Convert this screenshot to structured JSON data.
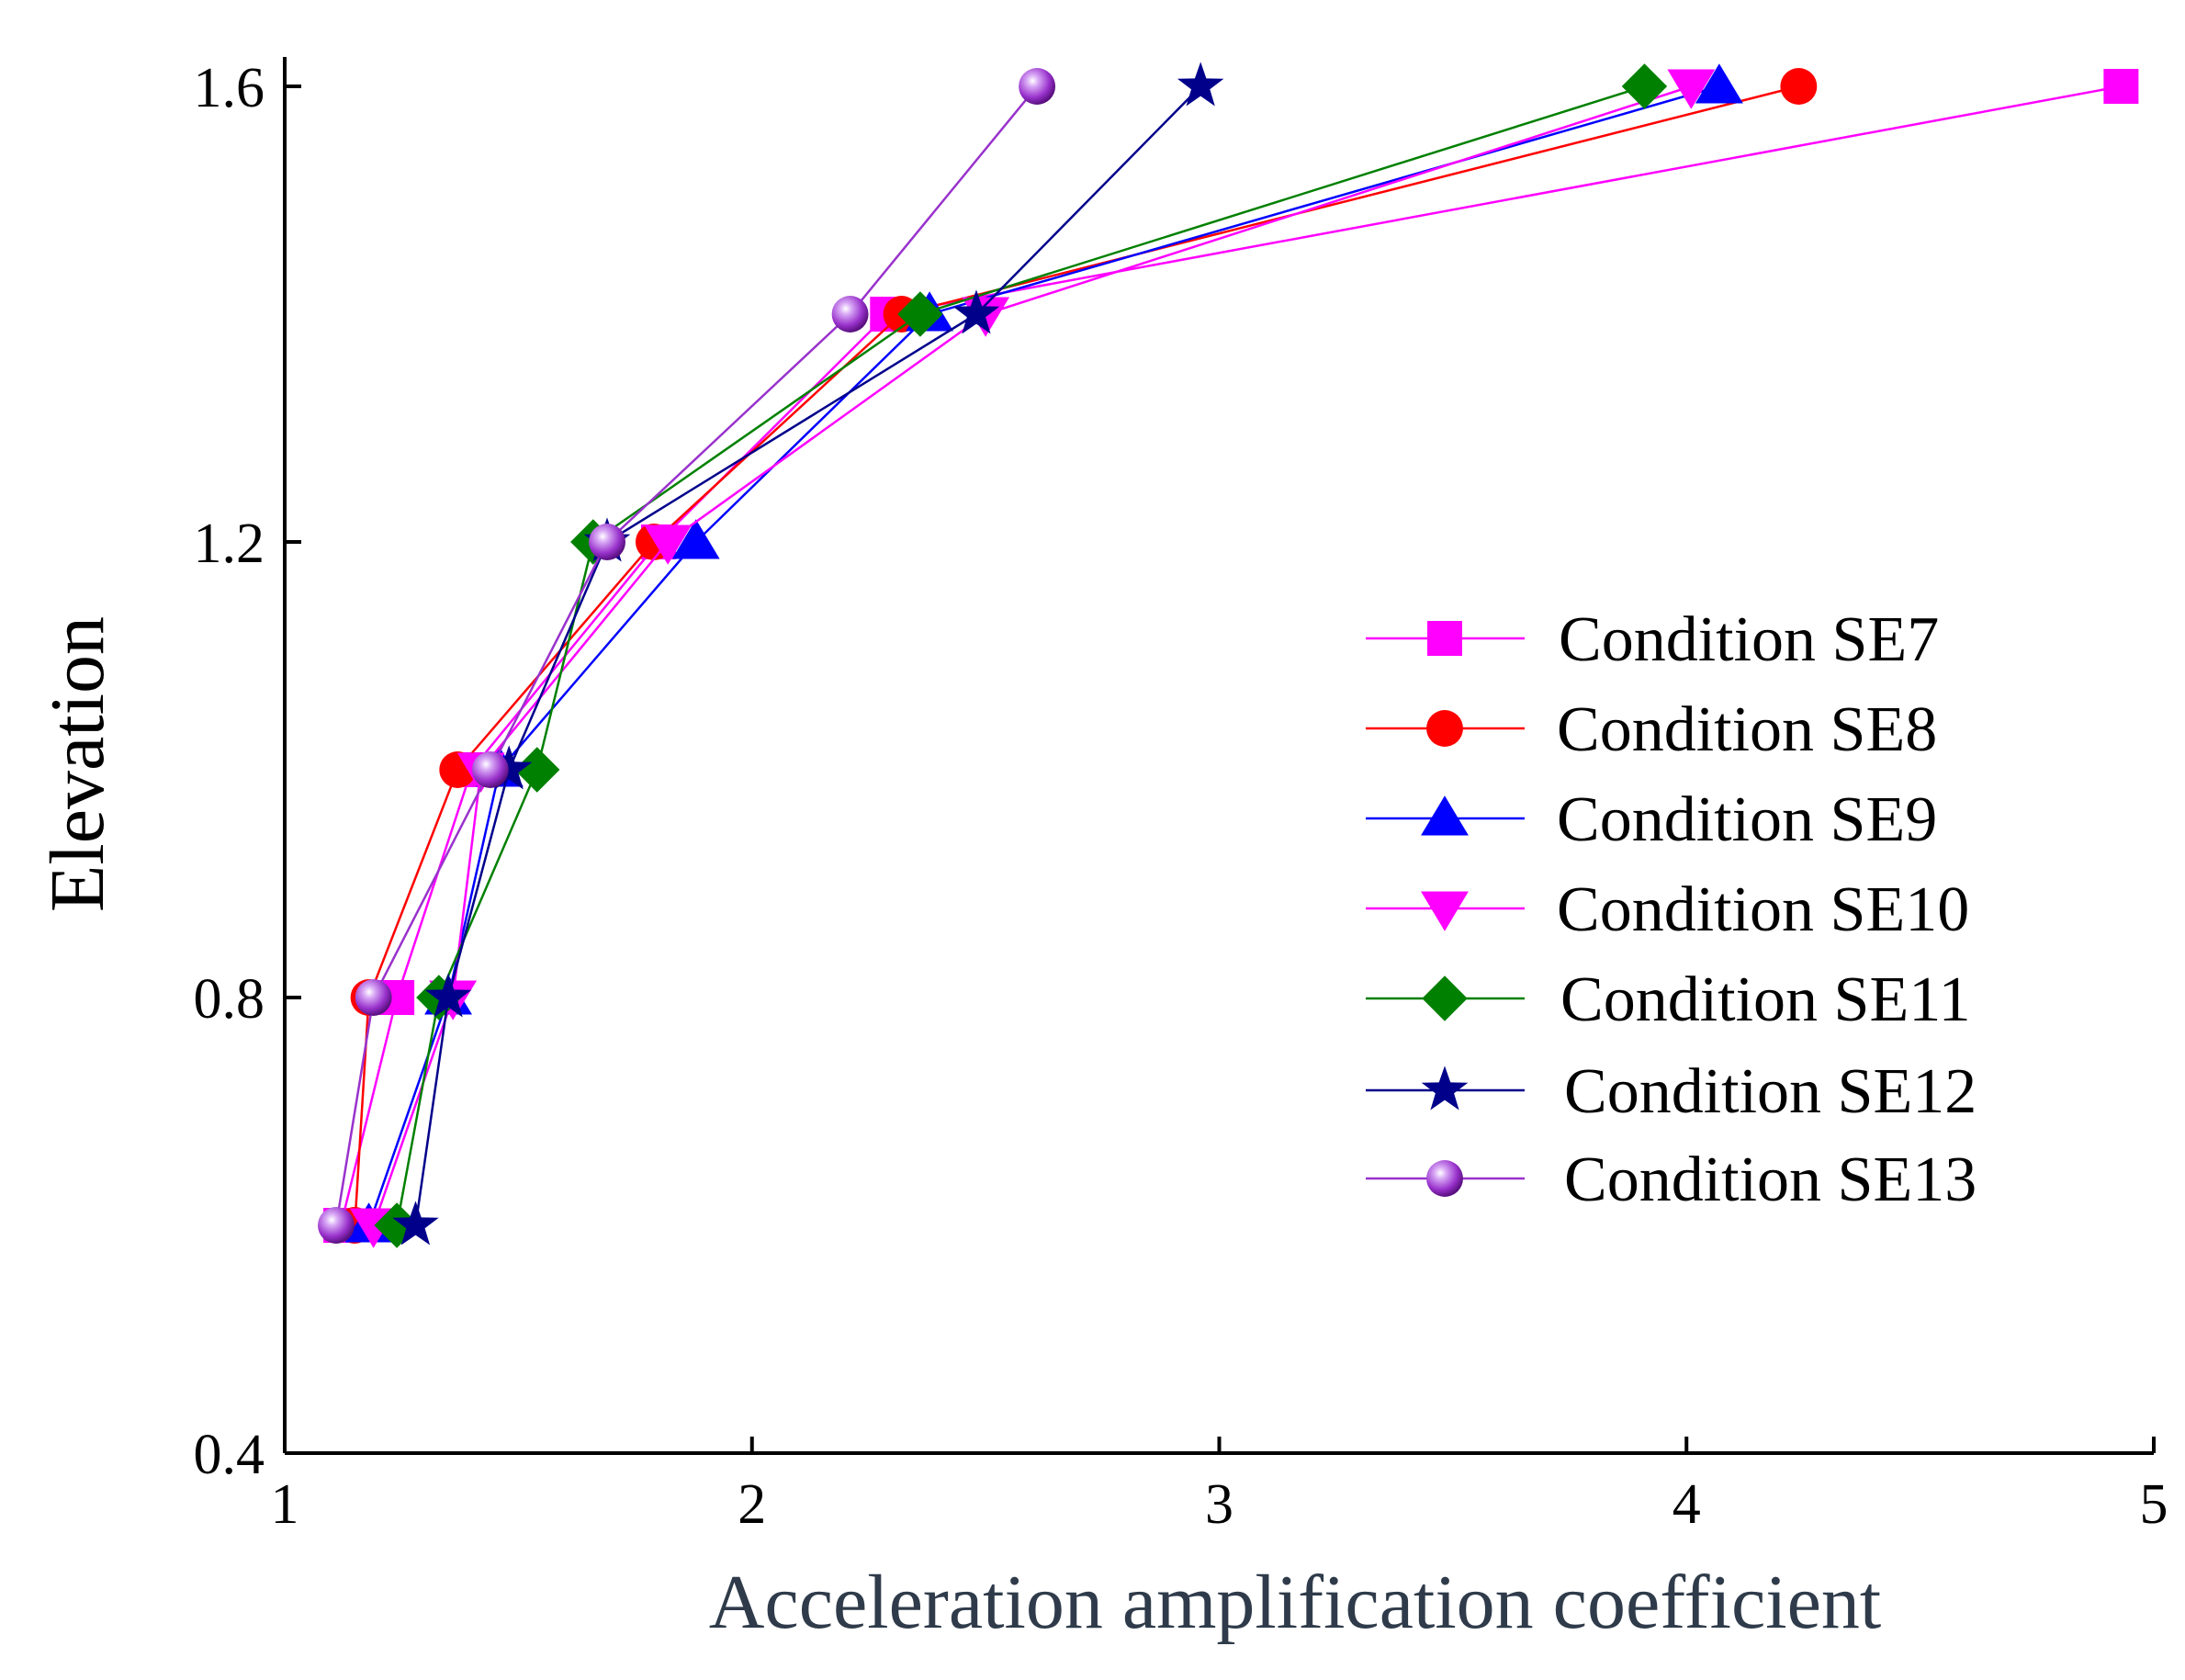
{
  "chart_data": {
    "type": "line",
    "title": "",
    "xlabel": "Acceleration amplification coefficient",
    "ylabel": "Elevation",
    "xlim": [
      1,
      5
    ],
    "ylim": [
      0.4,
      1.6
    ],
    "xticks": [
      "1",
      "2",
      "3",
      "4",
      "5"
    ],
    "yticks": [
      "0.4",
      "0.8",
      "1.2",
      "1.6"
    ],
    "grid": false,
    "legend_position": "right",
    "y": [
      0.6,
      0.8,
      1.0,
      1.2,
      1.4,
      1.6
    ],
    "series": [
      {
        "name": "Condition SE7",
        "marker": "square",
        "color": "#ff00ff",
        "x": [
          1.12,
          1.24,
          1.4,
          1.8,
          2.29,
          4.93
        ]
      },
      {
        "name": "Condition SE8",
        "marker": "circle",
        "color": "#ff0000",
        "x": [
          1.15,
          1.18,
          1.37,
          1.79,
          2.32,
          4.24
        ]
      },
      {
        "name": "Condition SE9",
        "marker": "triangle-up",
        "color": "#0000ff",
        "x": [
          1.18,
          1.35,
          1.46,
          1.88,
          2.38,
          4.07
        ]
      },
      {
        "name": "Condition SE10",
        "marker": "triangle-down",
        "color": "#ff00ff",
        "x": [
          1.19,
          1.36,
          1.42,
          1.82,
          2.5,
          4.01
        ]
      },
      {
        "name": "Condition SE11",
        "marker": "diamond",
        "color": "#008000",
        "x": [
          1.24,
          1.33,
          1.54,
          1.66,
          2.36,
          3.91
        ]
      },
      {
        "name": "Condition SE12",
        "marker": "star",
        "color": "#00008b",
        "x": [
          1.28,
          1.35,
          1.48,
          1.69,
          2.48,
          2.96
        ]
      },
      {
        "name": "Condition SE13",
        "marker": "sphere",
        "color": "#9932cc",
        "x": [
          1.11,
          1.19,
          1.44,
          1.69,
          2.21,
          2.61
        ]
      }
    ]
  },
  "colors": {
    "axis": "#000000",
    "xlabel": "#2f3b4a",
    "ylabel": "#000000"
  }
}
